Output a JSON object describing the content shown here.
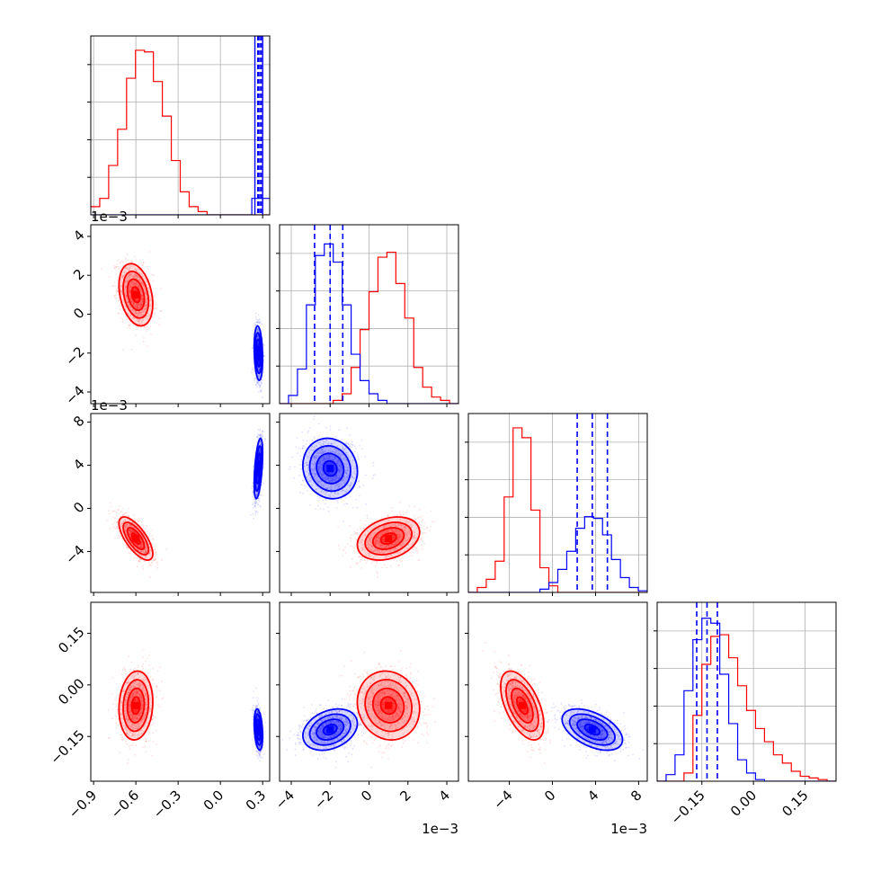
{
  "figure": {
    "type": "corner-plot",
    "parameters": 4
  },
  "colors": {
    "red": "#ff0000",
    "blue": "#0000ff",
    "grid": "#b0b0b0",
    "axes": "#000000"
  },
  "axes_ticks": {
    "p0": [
      "−0.9",
      "−0.6",
      "−0.3",
      "0.0",
      "0.3"
    ],
    "p1": [
      "−4",
      "−2",
      "0",
      "2",
      "4"
    ],
    "p2": [
      "−4",
      "0",
      "4",
      "8"
    ],
    "p3": [
      "−0.15",
      "0.00",
      "0.15"
    ],
    "p1_y": [
      "−4",
      "−2",
      "0",
      "2",
      "4"
    ],
    "p2_y": [
      "−4",
      "0",
      "4",
      "8"
    ],
    "p3_y": [
      "−0.15",
      "0.00",
      "0.15"
    ]
  },
  "offset_labels": {
    "row1_y": "1e−3",
    "row2_y": "1e−3",
    "col1_x": "1e−3",
    "col2_x": "1e−3"
  },
  "chart_data": {
    "type": "corner",
    "params": [
      {
        "range": [
          -0.92,
          0.35
        ],
        "ticks": [
          -0.9,
          -0.6,
          -0.3,
          0.0,
          0.3
        ],
        "scale": 1
      },
      {
        "range": [
          -4.6,
          4.6
        ],
        "ticks": [
          -4,
          -2,
          0,
          2,
          4
        ],
        "scale": 0.001
      },
      {
        "range": [
          -7.8,
          8.8
        ],
        "ticks": [
          -4,
          0,
          4,
          8
        ],
        "scale": 0.001
      },
      {
        "range": [
          -0.28,
          0.24
        ],
        "ticks": [
          -0.15,
          0.0,
          0.15
        ],
        "scale": 1
      }
    ],
    "series": [
      {
        "color": "red",
        "means": [
          -0.6,
          1.0,
          -2.8,
          -0.06
        ],
        "sds": [
          0.06,
          0.8,
          1.0,
          0.05
        ],
        "corr": {
          "1,0": -0.3,
          "2,0": -0.7,
          "2,1": 0.3,
          "3,0": 0.1,
          "3,1": -0.1,
          "3,2": -0.55
        }
      },
      {
        "color": "blue",
        "means": [
          0.27,
          -2.0,
          3.7,
          -0.13
        ],
        "sds": [
          0.015,
          0.7,
          1.4,
          0.03
        ],
        "corr": {
          "1,0": -0.2,
          "2,0": 0.5,
          "2,1": -0.1,
          "3,0": -0.3,
          "3,1": 0.3,
          "3,2": -0.5
        },
        "quantiles": [
          [
            0.245,
            0.26,
            0.275,
            0.29
          ],
          [
            -2.8,
            -2.0,
            -1.35
          ],
          [
            2.3,
            3.7,
            5.1
          ],
          [
            -0.165,
            -0.135,
            -0.105
          ]
        ]
      }
    ],
    "histograms": [
      {
        "x_range": [
          -0.92,
          0.35
        ],
        "red_values": [
          0.05,
          0.1,
          0.3,
          0.52,
          0.83,
          1.0,
          0.99,
          0.81,
          0.6,
          0.33,
          0.14,
          0.05,
          0.02,
          0.0,
          0.0,
          0.0,
          0.0,
          0.0,
          0.0,
          0.0
        ],
        "blue_values": [
          0.0,
          0.0,
          0.0,
          0.0,
          0.0,
          0.0,
          0.0,
          0.0,
          0.0,
          0.0,
          0.0,
          0.0,
          0.0,
          0.0,
          0.0,
          0.0,
          0.0,
          0.0,
          0.1,
          0.1
        ],
        "blue_full_height_at": [
          0.245,
          0.265,
          0.27,
          0.28,
          0.29,
          0.3
        ]
      },
      {
        "x_range": [
          -4.6,
          4.6
        ],
        "red_values": [
          0.0,
          0.0,
          0.0,
          0.0,
          0.0,
          0.0,
          0.02,
          0.06,
          0.22,
          0.45,
          0.68,
          0.89,
          0.92,
          0.73,
          0.52,
          0.22,
          0.1,
          0.04,
          0.02,
          0.0
        ],
        "blue_values": [
          0.0,
          0.05,
          0.21,
          0.6,
          0.9,
          0.97,
          0.86,
          0.6,
          0.3,
          0.14,
          0.06,
          0.02,
          0.0,
          0.0,
          0.0,
          0.0,
          0.0,
          0.0,
          0.0,
          0.0
        ]
      },
      {
        "x_range": [
          -7.8,
          8.8
        ],
        "red_values": [
          0.0,
          0.03,
          0.08,
          0.19,
          0.58,
          1.0,
          0.94,
          0.5,
          0.15,
          0.04,
          0.0,
          0.0,
          0.0,
          0.0,
          0.0,
          0.0,
          0.0,
          0.0,
          0.0,
          0.0
        ],
        "blue_values": [
          0.0,
          0.0,
          0.0,
          0.0,
          0.0,
          0.0,
          0.0,
          0.0,
          0.02,
          0.06,
          0.14,
          0.25,
          0.39,
          0.46,
          0.45,
          0.35,
          0.2,
          0.09,
          0.03,
          0.01
        ]
      },
      {
        "x_range": [
          -0.28,
          0.24
        ],
        "red_values": [
          0.0,
          0.0,
          0.0,
          0.05,
          0.4,
          0.71,
          0.88,
          0.89,
          0.75,
          0.58,
          0.43,
          0.32,
          0.24,
          0.16,
          0.11,
          0.06,
          0.03,
          0.02,
          0.01,
          0.0
        ],
        "blue_values": [
          0.0,
          0.04,
          0.16,
          0.55,
          0.86,
          0.99,
          0.96,
          0.65,
          0.35,
          0.13,
          0.05,
          0.01,
          0.0,
          0.0,
          0.0,
          0.0,
          0.0,
          0.0,
          0.0,
          0.0
        ]
      }
    ]
  }
}
